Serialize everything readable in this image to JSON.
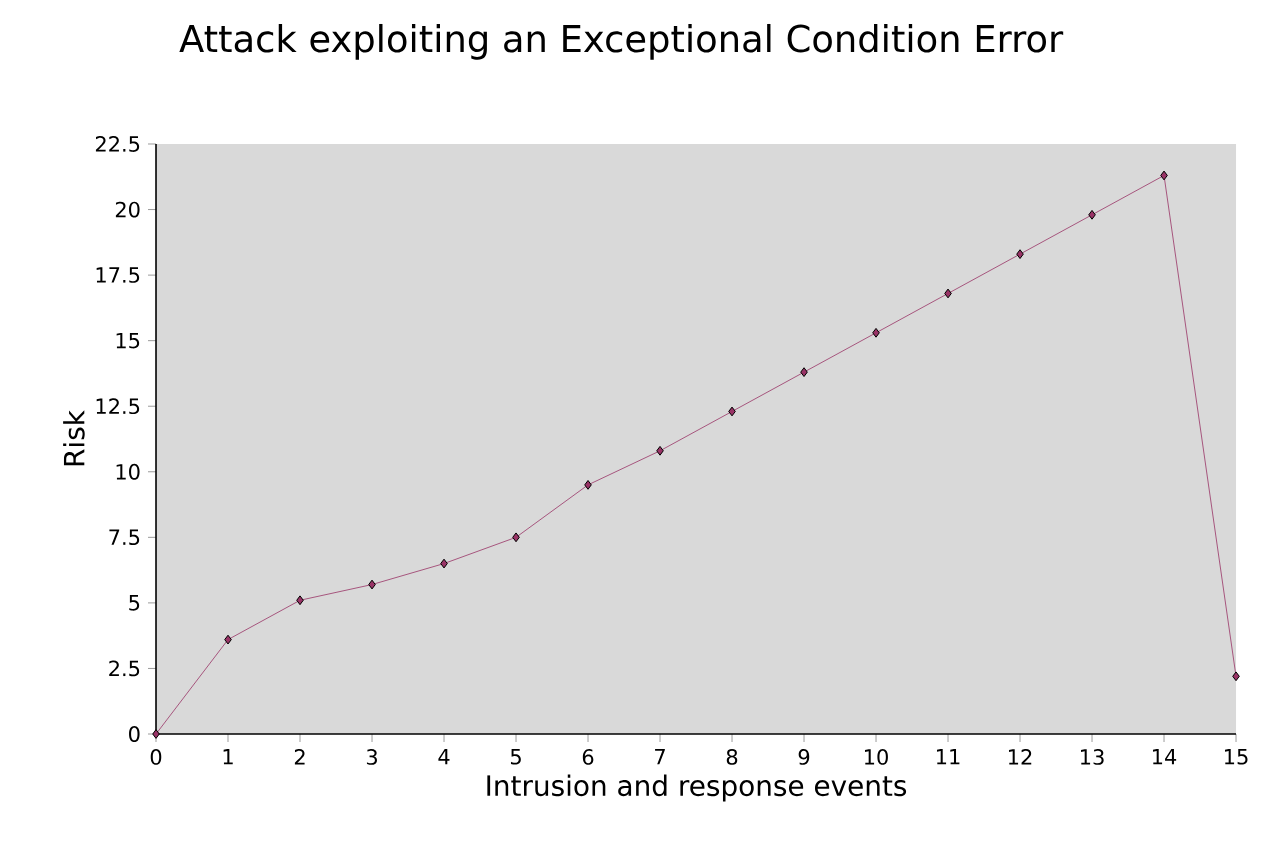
{
  "chart_data": {
    "type": "line",
    "title": "Attack exploiting an Exceptional Condition Error",
    "xlabel": "Intrusion and response events",
    "ylabel": "Risk",
    "x": [
      0,
      1,
      2,
      3,
      4,
      5,
      6,
      7,
      8,
      9,
      10,
      11,
      12,
      13,
      14,
      15
    ],
    "series": [
      {
        "color": "#993366",
        "values": [
          0,
          3.6,
          5.1,
          5.7,
          6.5,
          7.5,
          9.5,
          10.8,
          12.3,
          13.8,
          15.3,
          16.8,
          18.3,
          19.8,
          21.3,
          2.2
        ]
      }
    ],
    "xlim": [
      0,
      15
    ],
    "xticks": [
      0,
      1,
      2,
      3,
      4,
      5,
      6,
      7,
      8,
      9,
      10,
      11,
      12,
      13,
      14,
      15
    ],
    "ylim": [
      0,
      22.5
    ],
    "yticks": [
      0,
      2.5,
      5,
      7.5,
      10,
      12.5,
      15,
      17.5,
      20,
      22.5
    ],
    "marker": "diamond",
    "line_style": "solid"
  }
}
